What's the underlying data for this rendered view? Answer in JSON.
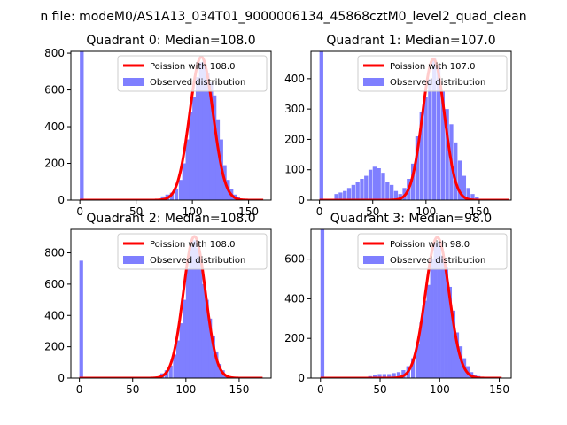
{
  "suptitle": "n file: modeM0/AS1A13_034T01_9000006134_45868cztM0_level2_quad_clean",
  "colors": {
    "fit": "#ff0000",
    "hist": "#7f7fff",
    "axis": "#000000"
  },
  "chart_data": [
    {
      "type": "bar",
      "title": "Quadrant 0: Median=108.0",
      "xlim": [
        -8,
        170
      ],
      "ylim": [
        0,
        810
      ],
      "xticks": [
        0,
        50,
        100,
        150
      ],
      "yticks": [
        0,
        200,
        400,
        600,
        800
      ],
      "legend": [
        "Poission with 108.0",
        "Observed distribution"
      ],
      "legend_position": "upper right",
      "fit": {
        "name": "Poission with 108.0",
        "mean": 108.0,
        "peak": 780,
        "x_range": [
          0,
          163
        ]
      },
      "series": [
        {
          "name": "Observed distribution",
          "bin_width": 3.4,
          "x": [
            0,
            72,
            76,
            80,
            84,
            88,
            91,
            94,
            97,
            100,
            103,
            106,
            109,
            112,
            115,
            118,
            121,
            124,
            127,
            130,
            133,
            136,
            139
          ],
          "values": [
            810,
            20,
            30,
            40,
            60,
            110,
            200,
            330,
            480,
            560,
            670,
            750,
            760,
            690,
            640,
            570,
            440,
            330,
            190,
            110,
            60,
            30,
            15
          ]
        }
      ]
    },
    {
      "type": "bar",
      "title": "Quadrant 1: Median=107.0",
      "xlim": [
        -8,
        180
      ],
      "ylim": [
        0,
        490
      ],
      "xticks": [
        0,
        50,
        100,
        150
      ],
      "yticks": [
        0,
        100,
        200,
        300,
        400
      ],
      "legend": [
        "Poission with 107.0",
        "Observed distribution"
      ],
      "legend_position": "upper right",
      "fit": {
        "name": "Poission with 107.0",
        "mean": 107.0,
        "peak": 465,
        "x_range": [
          0,
          178
        ]
      },
      "series": [
        {
          "name": "Observed distribution",
          "bin_width": 3.6,
          "x": [
            0,
            14,
            18,
            22,
            26,
            30,
            34,
            38,
            42,
            46,
            50,
            54,
            58,
            62,
            66,
            70,
            74,
            78,
            82,
            86,
            90,
            94,
            98,
            102,
            106,
            110,
            114,
            118,
            122,
            126,
            130,
            134,
            138,
            142,
            146
          ],
          "values": [
            490,
            20,
            25,
            30,
            40,
            50,
            60,
            70,
            80,
            100,
            110,
            105,
            90,
            60,
            50,
            30,
            20,
            40,
            70,
            120,
            210,
            290,
            340,
            400,
            470,
            440,
            360,
            300,
            250,
            190,
            130,
            80,
            40,
            20,
            10
          ]
        }
      ]
    },
    {
      "type": "bar",
      "title": "Quadrant 2: Median=108.0",
      "xlim": [
        -8,
        180
      ],
      "ylim": [
        0,
        950
      ],
      "xticks": [
        0,
        50,
        100,
        150
      ],
      "yticks": [
        0,
        200,
        400,
        600,
        800
      ],
      "legend": [
        "Poission with 108.0",
        "Observed distribution"
      ],
      "legend_position": "upper right",
      "fit": {
        "name": "Poission with 108.0",
        "mean": 108.0,
        "peak": 905,
        "x_range": [
          0,
          172
        ]
      },
      "series": [
        {
          "name": "Observed distribution",
          "bin_width": 3.5,
          "x": [
            0,
            72,
            76,
            80,
            84,
            88,
            91,
            94,
            97,
            100,
            103,
            106,
            109,
            112,
            115,
            118,
            121,
            124,
            127,
            130,
            133,
            136,
            139
          ],
          "values": [
            750,
            10,
            30,
            50,
            80,
            150,
            240,
            350,
            500,
            700,
            850,
            880,
            830,
            760,
            600,
            500,
            380,
            270,
            170,
            90,
            50,
            20,
            10
          ]
        }
      ]
    },
    {
      "type": "bar",
      "title": "Quadrant 3: Median=98.0",
      "xlim": [
        -8,
        160
      ],
      "ylim": [
        0,
        750
      ],
      "xticks": [
        0,
        50,
        100,
        150
      ],
      "yticks": [
        0,
        200,
        400,
        600
      ],
      "legend": [
        "Poission with 98.0",
        "Observed distribution"
      ],
      "legend_position": "upper right",
      "fit": {
        "name": "Poission with 98.0",
        "mean": 98.0,
        "peak": 710,
        "x_range": [
          0,
          152
        ]
      },
      "series": [
        {
          "name": "Observed distribution",
          "bin_width": 3.2,
          "x": [
            0,
            40,
            44,
            48,
            52,
            56,
            60,
            64,
            68,
            72,
            76,
            80,
            83,
            86,
            89,
            92,
            95,
            98,
            101,
            104,
            107,
            110,
            113,
            116,
            119,
            122,
            125,
            128,
            131
          ],
          "values": [
            750,
            10,
            15,
            20,
            20,
            20,
            25,
            30,
            40,
            60,
            100,
            170,
            280,
            390,
            470,
            600,
            680,
            690,
            620,
            560,
            460,
            340,
            230,
            160,
            100,
            60,
            30,
            15,
            10
          ]
        }
      ]
    }
  ]
}
